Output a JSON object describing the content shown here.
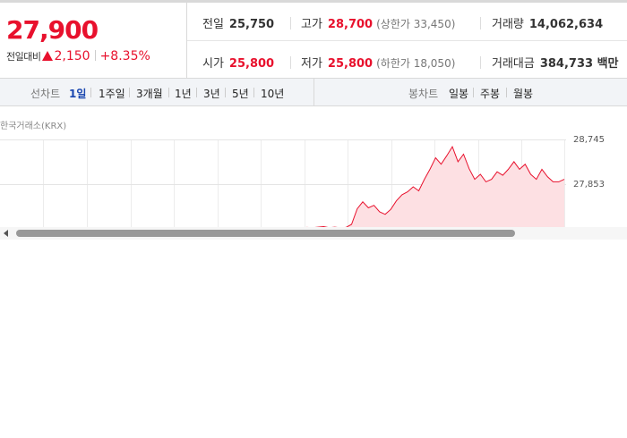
{
  "quote": {
    "price": "27,900",
    "change_label": "전일대비",
    "change_value": "2,150",
    "change_pct": "+8.35%",
    "colors": {
      "up": "#e8112d"
    },
    "prev_label": "전일",
    "prev_value": "25,750",
    "high_label": "고가",
    "high_value": "28,700",
    "upper_limit": "(상한가 33,450)",
    "volume_label": "거래량",
    "volume_value": "14,062,634",
    "open_label": "시가",
    "open_value": "25,800",
    "low_label": "저가",
    "low_value": "25,800",
    "lower_limit": "(하한가 18,050)",
    "amount_label": "거래대금",
    "amount_value": "384,733 백만"
  },
  "tabs": {
    "line_chart_label": "선차트",
    "line_ranges": [
      "1일",
      "1주일",
      "3개월",
      "1년",
      "3년",
      "5년",
      "10년"
    ],
    "active_range": "1일",
    "candle_chart_label": "봉차트",
    "candle_ranges": [
      "일봉",
      "주봉",
      "월봉"
    ]
  },
  "chart": {
    "source": "한국거래소(KRX)",
    "y_ticks": [
      "28,745",
      "27,853"
    ],
    "icons": {
      "scroll_left": "left-arrow-icon"
    }
  },
  "chart_data": {
    "type": "area",
    "title": "",
    "xlabel": "",
    "ylabel": "",
    "ylim": [
      26961,
      28745
    ],
    "yticks": [
      28745,
      27853
    ],
    "grid": true,
    "series": [
      {
        "color": "#e8112d",
        "values": [
          26980,
          26975,
          26990,
          26985,
          26995,
          27005,
          26985,
          26995,
          26980,
          26990,
          27050,
          27360,
          27500,
          27380,
          27430,
          27300,
          27250,
          27350,
          27520,
          27640,
          27700,
          27800,
          27720,
          27950,
          28150,
          28380,
          28250,
          28420,
          28600,
          28300,
          28450,
          28160,
          27950,
          28050,
          27900,
          27950,
          28100,
          28030,
          28150,
          28300,
          28150,
          28250,
          28050,
          27950,
          28150,
          28000,
          27900,
          27900,
          27950
        ]
      }
    ]
  }
}
